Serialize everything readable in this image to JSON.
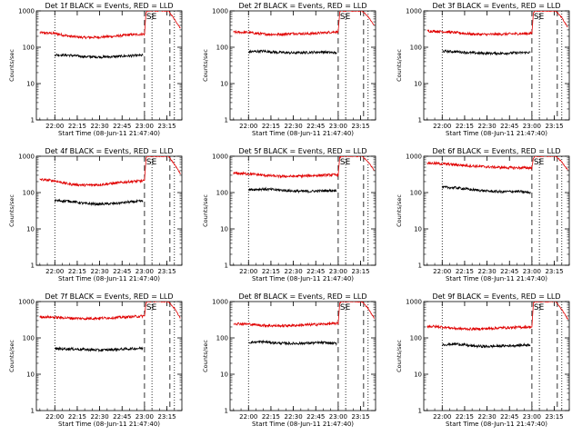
{
  "figure": {
    "colors": {
      "events": "#000000",
      "lld": "#e00000",
      "axes": "#000000",
      "background": "#ffffff"
    }
  },
  "chart_data": [
    {
      "type": "line",
      "title": "Det 1f BLACK = Events, RED = LLD",
      "xlabel": "Start Time (08-Jun-11 21:47:40)",
      "ylabel": "Counts/sec",
      "x_ticks": [
        "22:00",
        "22:15",
        "22:30",
        "22:45",
        "23:00",
        "23:15"
      ],
      "y_ticks": [
        "1",
        "10",
        "100",
        "1000"
      ],
      "y_scale": "log",
      "ylim": [
        1,
        1000
      ],
      "xlim": [
        "21:47:40",
        "23:25"
      ],
      "annotation": "SE",
      "vlines": [
        {
          "time": "22:00",
          "style": "dotted"
        },
        {
          "time": "23:00",
          "style": "dashed"
        },
        {
          "time": "23:05",
          "style": "dotted"
        },
        {
          "time": "23:17",
          "style": "dashed"
        },
        {
          "time": "23:20",
          "style": "dotted"
        }
      ],
      "series": [
        {
          "color": "red",
          "x": [
            "21:50",
            "22:00",
            "22:10",
            "22:20",
            "22:30",
            "22:40",
            "22:50",
            "23:00",
            "23:01",
            "23:02",
            "23:16",
            "23:20",
            "23:24"
          ],
          "y": [
            250,
            240,
            200,
            185,
            190,
            200,
            220,
            230,
            900,
            1000,
            1000,
            600,
            330
          ]
        },
        {
          "color": "black",
          "x": [
            "22:00",
            "22:10",
            "22:20",
            "22:30",
            "22:40",
            "22:50",
            "22:59"
          ],
          "y": [
            62,
            60,
            55,
            54,
            55,
            58,
            60
          ]
        }
      ]
    },
    {
      "type": "line",
      "title": "Det 2f BLACK = Events, RED = LLD",
      "xlabel": "Start Time (08-Jun-11 21:47:40)",
      "ylabel": "Counts/sec",
      "x_ticks": [
        "22:00",
        "22:15",
        "22:30",
        "22:45",
        "23:00",
        "23:15"
      ],
      "y_ticks": [
        "1",
        "10",
        "100",
        "1000"
      ],
      "y_scale": "log",
      "ylim": [
        1,
        1000
      ],
      "xlim": [
        "21:47:40",
        "23:25"
      ],
      "annotation": "SE",
      "vlines": [
        {
          "time": "22:00",
          "style": "dotted"
        },
        {
          "time": "23:00",
          "style": "dashed"
        },
        {
          "time": "23:05",
          "style": "dotted"
        },
        {
          "time": "23:17",
          "style": "dashed"
        },
        {
          "time": "23:20",
          "style": "dotted"
        }
      ],
      "series": [
        {
          "color": "red",
          "x": [
            "21:50",
            "22:00",
            "22:10",
            "22:20",
            "22:30",
            "22:40",
            "22:50",
            "23:00",
            "23:01",
            "23:02",
            "23:16",
            "23:20",
            "23:24"
          ],
          "y": [
            260,
            255,
            230,
            225,
            240,
            235,
            250,
            270,
            900,
            1000,
            1000,
            700,
            400
          ]
        },
        {
          "color": "black",
          "x": [
            "22:00",
            "22:10",
            "22:20",
            "22:30",
            "22:40",
            "22:50",
            "22:59"
          ],
          "y": [
            75,
            78,
            72,
            70,
            72,
            74,
            70
          ]
        }
      ]
    },
    {
      "type": "line",
      "title": "Det 3f BLACK = Events, RED = LLD",
      "xlabel": "Start Time (08-Jun-11 21:47:40)",
      "ylabel": "Counts/sec",
      "x_ticks": [
        "22:00",
        "22:15",
        "22:30",
        "22:45",
        "23:00",
        "23:15"
      ],
      "y_ticks": [
        "1",
        "10",
        "100",
        "1000"
      ],
      "y_scale": "log",
      "ylim": [
        1,
        1000
      ],
      "xlim": [
        "21:47:40",
        "23:25"
      ],
      "annotation": "SE",
      "vlines": [
        {
          "time": "22:00",
          "style": "dotted"
        },
        {
          "time": "23:00",
          "style": "dashed"
        },
        {
          "time": "23:05",
          "style": "dotted"
        },
        {
          "time": "23:17",
          "style": "dashed"
        },
        {
          "time": "23:20",
          "style": "dotted"
        }
      ],
      "series": [
        {
          "color": "red",
          "x": [
            "21:50",
            "22:00",
            "22:10",
            "22:20",
            "22:30",
            "22:40",
            "22:50",
            "23:00",
            "23:01",
            "23:02",
            "23:16",
            "23:20",
            "23:24"
          ],
          "y": [
            280,
            270,
            250,
            230,
            225,
            230,
            235,
            240,
            900,
            1000,
            1000,
            650,
            350
          ]
        },
        {
          "color": "black",
          "x": [
            "22:00",
            "22:10",
            "22:20",
            "22:30",
            "22:40",
            "22:50",
            "22:59"
          ],
          "y": [
            78,
            75,
            70,
            68,
            68,
            70,
            72
          ]
        }
      ]
    },
    {
      "type": "line",
      "title": "Det 4f BLACK = Events, RED = LLD",
      "xlabel": "Start Time (08-Jun-11 21:47:40)",
      "ylabel": "Counts/sec",
      "x_ticks": [
        "22:00",
        "22:15",
        "22:30",
        "22:45",
        "23:00",
        "23:15"
      ],
      "y_ticks": [
        "1",
        "10",
        "100",
        "1000"
      ],
      "y_scale": "log",
      "ylim": [
        1,
        1000
      ],
      "xlim": [
        "21:47:40",
        "23:25"
      ],
      "annotation": "SE",
      "vlines": [
        {
          "time": "22:00",
          "style": "dotted"
        },
        {
          "time": "23:00",
          "style": "dashed"
        },
        {
          "time": "23:05",
          "style": "dotted"
        },
        {
          "time": "23:17",
          "style": "dashed"
        },
        {
          "time": "23:20",
          "style": "dotted"
        }
      ],
      "series": [
        {
          "color": "red",
          "x": [
            "21:50",
            "22:00",
            "22:10",
            "22:20",
            "22:30",
            "22:40",
            "22:50",
            "23:00",
            "23:01",
            "23:02",
            "23:16",
            "23:20",
            "23:24"
          ],
          "y": [
            230,
            210,
            170,
            160,
            165,
            180,
            200,
            210,
            900,
            1000,
            1000,
            600,
            330
          ]
        },
        {
          "color": "black",
          "x": [
            "22:00",
            "22:10",
            "22:20",
            "22:30",
            "22:40",
            "22:50",
            "22:59"
          ],
          "y": [
            60,
            58,
            50,
            48,
            50,
            55,
            58
          ]
        }
      ]
    },
    {
      "type": "line",
      "title": "Det 5f BLACK = Events, RED = LLD",
      "xlabel": "Start Time (08-Jun-11 21:47:40)",
      "ylabel": "Counts/sec",
      "x_ticks": [
        "22:00",
        "22:15",
        "22:30",
        "22:45",
        "23:00",
        "23:15"
      ],
      "y_ticks": [
        "1",
        "10",
        "100",
        "1000"
      ],
      "y_scale": "log",
      "ylim": [
        1,
        1000
      ],
      "xlim": [
        "21:47:40",
        "23:25"
      ],
      "annotation": "SE",
      "vlines": [
        {
          "time": "22:00",
          "style": "dotted"
        },
        {
          "time": "23:00",
          "style": "dashed"
        },
        {
          "time": "23:05",
          "style": "dotted"
        },
        {
          "time": "23:17",
          "style": "dashed"
        },
        {
          "time": "23:20",
          "style": "dotted"
        }
      ],
      "series": [
        {
          "color": "red",
          "x": [
            "21:50",
            "22:00",
            "22:10",
            "22:20",
            "22:30",
            "22:40",
            "22:50",
            "23:00",
            "23:01",
            "23:02",
            "23:16",
            "23:20",
            "23:24"
          ],
          "y": [
            340,
            330,
            300,
            280,
            280,
            290,
            300,
            310,
            900,
            1000,
            1000,
            700,
            420
          ]
        },
        {
          "color": "black",
          "x": [
            "22:00",
            "22:10",
            "22:20",
            "22:30",
            "22:40",
            "22:50",
            "22:59"
          ],
          "y": [
            120,
            125,
            118,
            110,
            108,
            112,
            115
          ]
        }
      ]
    },
    {
      "type": "line",
      "title": "Det 6f BLACK = Events, RED = LLD",
      "xlabel": "Start Time (08-Jun-11 21:47:40)",
      "ylabel": "Counts/sec",
      "x_ticks": [
        "22:00",
        "22:15",
        "22:30",
        "22:45",
        "23:00",
        "23:15"
      ],
      "y_ticks": [
        "1",
        "10",
        "100",
        "1000"
      ],
      "y_scale": "log",
      "ylim": [
        1,
        1000
      ],
      "xlim": [
        "21:47:40",
        "23:25"
      ],
      "annotation": "SE",
      "vlines": [
        {
          "time": "22:00",
          "style": "dotted"
        },
        {
          "time": "23:00",
          "style": "dashed"
        },
        {
          "time": "23:05",
          "style": "dotted"
        },
        {
          "time": "23:17",
          "style": "dashed"
        },
        {
          "time": "23:20",
          "style": "dotted"
        }
      ],
      "series": [
        {
          "color": "red",
          "x": [
            "21:50",
            "22:00",
            "22:10",
            "22:20",
            "22:30",
            "22:40",
            "22:50",
            "23:00",
            "23:01",
            "23:02",
            "23:16",
            "23:20",
            "23:24"
          ],
          "y": [
            650,
            620,
            580,
            540,
            510,
            490,
            480,
            480,
            900,
            1000,
            1000,
            700,
            420
          ]
        },
        {
          "color": "black",
          "x": [
            "22:00",
            "22:10",
            "22:20",
            "22:30",
            "22:40",
            "22:50",
            "22:59"
          ],
          "y": [
            140,
            135,
            120,
            110,
            105,
            108,
            100
          ]
        }
      ]
    },
    {
      "type": "line",
      "title": "Det 7f BLACK = Events, RED = LLD",
      "xlabel": "Start Time (08-Jun-11 21:47:40)",
      "ylabel": "Counts/sec",
      "x_ticks": [
        "22:00",
        "22:15",
        "22:30",
        "22:45",
        "23:00",
        "23:15"
      ],
      "y_ticks": [
        "1",
        "10",
        "100",
        "1000"
      ],
      "y_scale": "log",
      "ylim": [
        1,
        1000
      ],
      "xlim": [
        "21:47:40",
        "23:25"
      ],
      "annotation": "SE",
      "vlines": [
        {
          "time": "22:00",
          "style": "dotted"
        },
        {
          "time": "23:00",
          "style": "dashed"
        },
        {
          "time": "23:05",
          "style": "dotted"
        },
        {
          "time": "23:17",
          "style": "dashed"
        },
        {
          "time": "23:20",
          "style": "dotted"
        }
      ],
      "series": [
        {
          "color": "red",
          "x": [
            "21:50",
            "22:00",
            "22:10",
            "22:20",
            "22:30",
            "22:40",
            "22:50",
            "23:00",
            "23:01",
            "23:02",
            "23:16",
            "23:20",
            "23:24"
          ],
          "y": [
            380,
            370,
            350,
            340,
            350,
            360,
            380,
            400,
            900,
            1000,
            1000,
            650,
            350
          ]
        },
        {
          "color": "black",
          "x": [
            "22:00",
            "22:10",
            "22:20",
            "22:30",
            "22:40",
            "22:50",
            "22:59"
          ],
          "y": [
            50,
            50,
            48,
            46,
            48,
            50,
            52
          ]
        }
      ]
    },
    {
      "type": "line",
      "title": "Det 8f BLACK = Events, RED = LLD",
      "xlabel": "Start Time (08-Jun-11 21:47:40)",
      "ylabel": "Counts/sec",
      "x_ticks": [
        "22:00",
        "22:15",
        "22:30",
        "22:45",
        "23:00",
        "23:15"
      ],
      "y_ticks": [
        "1",
        "10",
        "100",
        "1000"
      ],
      "y_scale": "log",
      "ylim": [
        1,
        1000
      ],
      "xlim": [
        "21:47:40",
        "23:25"
      ],
      "annotation": "SE",
      "vlines": [
        {
          "time": "22:00",
          "style": "dotted"
        },
        {
          "time": "23:00",
          "style": "dashed"
        },
        {
          "time": "23:05",
          "style": "dotted"
        },
        {
          "time": "23:17",
          "style": "dashed"
        },
        {
          "time": "23:20",
          "style": "dotted"
        }
      ],
      "series": [
        {
          "color": "red",
          "x": [
            "21:50",
            "22:00",
            "22:10",
            "22:20",
            "22:30",
            "22:40",
            "22:50",
            "23:00",
            "23:01",
            "23:02",
            "23:16",
            "23:20",
            "23:24"
          ],
          "y": [
            250,
            240,
            220,
            215,
            220,
            230,
            240,
            250,
            900,
            1000,
            1000,
            650,
            350
          ]
        },
        {
          "color": "black",
          "x": [
            "22:00",
            "22:10",
            "22:20",
            "22:30",
            "22:40",
            "22:50",
            "22:59"
          ],
          "y": [
            75,
            78,
            72,
            70,
            72,
            74,
            70
          ]
        }
      ]
    },
    {
      "type": "line",
      "title": "Det 9f BLACK = Events, RED = LLD",
      "xlabel": "Start Time (08-Jun-11 21:47:40)",
      "ylabel": "Counts/sec",
      "x_ticks": [
        "22:00",
        "22:15",
        "22:30",
        "22:45",
        "23:00",
        "23:15"
      ],
      "y_ticks": [
        "1",
        "10",
        "100",
        "1000"
      ],
      "y_scale": "log",
      "ylim": [
        1,
        1000
      ],
      "xlim": [
        "21:47:40",
        "23:25"
      ],
      "annotation": "SE",
      "vlines": [
        {
          "time": "22:00",
          "style": "dotted"
        },
        {
          "time": "23:00",
          "style": "dashed"
        },
        {
          "time": "23:05",
          "style": "dotted"
        },
        {
          "time": "23:17",
          "style": "dashed"
        },
        {
          "time": "23:20",
          "style": "dotted"
        }
      ],
      "series": [
        {
          "color": "red",
          "x": [
            "21:50",
            "22:00",
            "22:10",
            "22:20",
            "22:30",
            "22:40",
            "22:50",
            "23:00",
            "23:01",
            "23:02",
            "23:16",
            "23:20",
            "23:24"
          ],
          "y": [
            210,
            200,
            180,
            175,
            180,
            190,
            195,
            200,
            900,
            1000,
            1000,
            600,
            330
          ]
        },
        {
          "color": "black",
          "x": [
            "22:00",
            "22:10",
            "22:20",
            "22:30",
            "22:40",
            "22:50",
            "22:59"
          ],
          "y": [
            65,
            68,
            60,
            58,
            60,
            62,
            65
          ]
        }
      ]
    }
  ]
}
